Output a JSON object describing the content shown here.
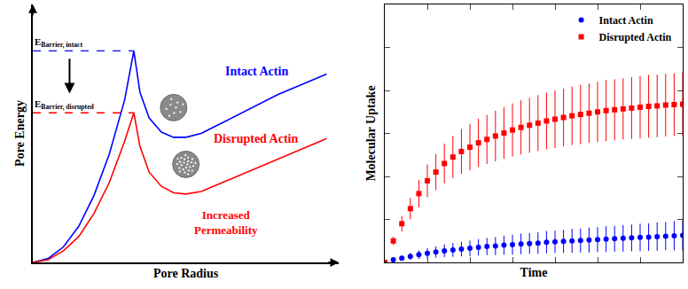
{
  "chart_data": [
    {
      "type": "line",
      "x_label": "Pore Radius",
      "y_label": "Pore Energy",
      "xlim": [
        0,
        10
      ],
      "ylim": [
        0,
        10
      ],
      "tick_labels": false,
      "grid": false,
      "x": [
        0,
        0.5,
        1,
        1.5,
        2,
        2.5,
        3,
        3.3,
        3.5,
        3.8,
        4.2,
        4.6,
        5,
        5.5,
        6,
        7,
        8,
        9,
        9.6
      ],
      "series": [
        {
          "name": "Intact Actin",
          "color": "#0000ff",
          "barrier_label": {
            "text": "E",
            "subscript": "Barrier, intact"
          },
          "values": [
            0,
            0.15,
            0.6,
            1.4,
            2.6,
            4.2,
            6.3,
            8.2,
            6.6,
            5.6,
            5.05,
            4.85,
            4.85,
            5.0,
            5.3,
            5.9,
            6.5,
            7.0,
            7.3
          ]
        },
        {
          "name": "Disrupted Actin",
          "color": "#ff0000",
          "barrier_label": {
            "text": "E",
            "subscript": "Barrier, disrupted"
          },
          "values": [
            0,
            0.1,
            0.45,
            1.0,
            1.9,
            3.1,
            4.7,
            5.8,
            4.5,
            3.5,
            2.95,
            2.7,
            2.65,
            2.75,
            3.0,
            3.5,
            4.0,
            4.5,
            4.8
          ]
        }
      ],
      "annotations": [
        {
          "lines": [
            "Increased",
            "Permeability"
          ],
          "color": "#ff0000"
        }
      ]
    },
    {
      "type": "scatter",
      "x_label": "Time",
      "y_label": "Molecular Uptake",
      "xlim": [
        0,
        7
      ],
      "ylim": [
        0,
        6
      ],
      "xticks": [
        0,
        1,
        2,
        3,
        4,
        5,
        6,
        7
      ],
      "yticks": [
        0,
        1,
        2,
        3,
        4,
        5,
        6
      ],
      "tick_labels": false,
      "grid": false,
      "legend": "top right",
      "x": [
        0,
        0.2,
        0.4,
        0.6,
        0.8,
        1,
        1.2,
        1.4,
        1.6,
        1.8,
        2,
        2.2,
        2.4,
        2.6,
        2.8,
        3,
        3.2,
        3.4,
        3.6,
        3.8,
        4,
        4.2,
        4.4,
        4.6,
        4.8,
        5,
        5.2,
        5.4,
        5.6,
        5.8,
        6,
        6.2,
        6.4,
        6.6,
        6.8,
        7
      ],
      "series": [
        {
          "name": "Intact Actin",
          "color": "#0000ff",
          "marker": "circle",
          "values": [
            0,
            0.06,
            0.1,
            0.14,
            0.18,
            0.21,
            0.24,
            0.27,
            0.29,
            0.31,
            0.33,
            0.35,
            0.37,
            0.38,
            0.4,
            0.41,
            0.43,
            0.44,
            0.45,
            0.47,
            0.48,
            0.49,
            0.5,
            0.51,
            0.52,
            0.53,
            0.54,
            0.55,
            0.56,
            0.57,
            0.58,
            0.59,
            0.6,
            0.61,
            0.62,
            0.63
          ],
          "errors": [
            0,
            0.03,
            0.06,
            0.08,
            0.1,
            0.12,
            0.13,
            0.15,
            0.16,
            0.17,
            0.18,
            0.19,
            0.2,
            0.21,
            0.22,
            0.23,
            0.24,
            0.24,
            0.25,
            0.26,
            0.26,
            0.27,
            0.28,
            0.28,
            0.29,
            0.29,
            0.3,
            0.3,
            0.31,
            0.31,
            0.32,
            0.32,
            0.33,
            0.33,
            0.34,
            0.35
          ]
        },
        {
          "name": "Disrupted Actin",
          "color": "#ff0000",
          "marker": "square",
          "values": [
            0,
            0.5,
            0.9,
            1.25,
            1.6,
            1.9,
            2.1,
            2.3,
            2.45,
            2.58,
            2.68,
            2.78,
            2.86,
            2.94,
            3.01,
            3.08,
            3.14,
            3.19,
            3.24,
            3.29,
            3.33,
            3.37,
            3.41,
            3.44,
            3.47,
            3.5,
            3.53,
            3.55,
            3.57,
            3.59,
            3.61,
            3.63,
            3.64,
            3.66,
            3.67,
            3.68
          ],
          "errors": [
            0,
            0.1,
            0.18,
            0.25,
            0.32,
            0.38,
            0.42,
            0.46,
            0.49,
            0.52,
            0.54,
            0.56,
            0.57,
            0.59,
            0.6,
            0.62,
            0.63,
            0.64,
            0.65,
            0.66,
            0.67,
            0.67,
            0.68,
            0.69,
            0.69,
            0.7,
            0.71,
            0.71,
            0.71,
            0.72,
            0.72,
            0.73,
            0.73,
            0.73,
            0.73,
            0.74
          ]
        }
      ]
    }
  ]
}
